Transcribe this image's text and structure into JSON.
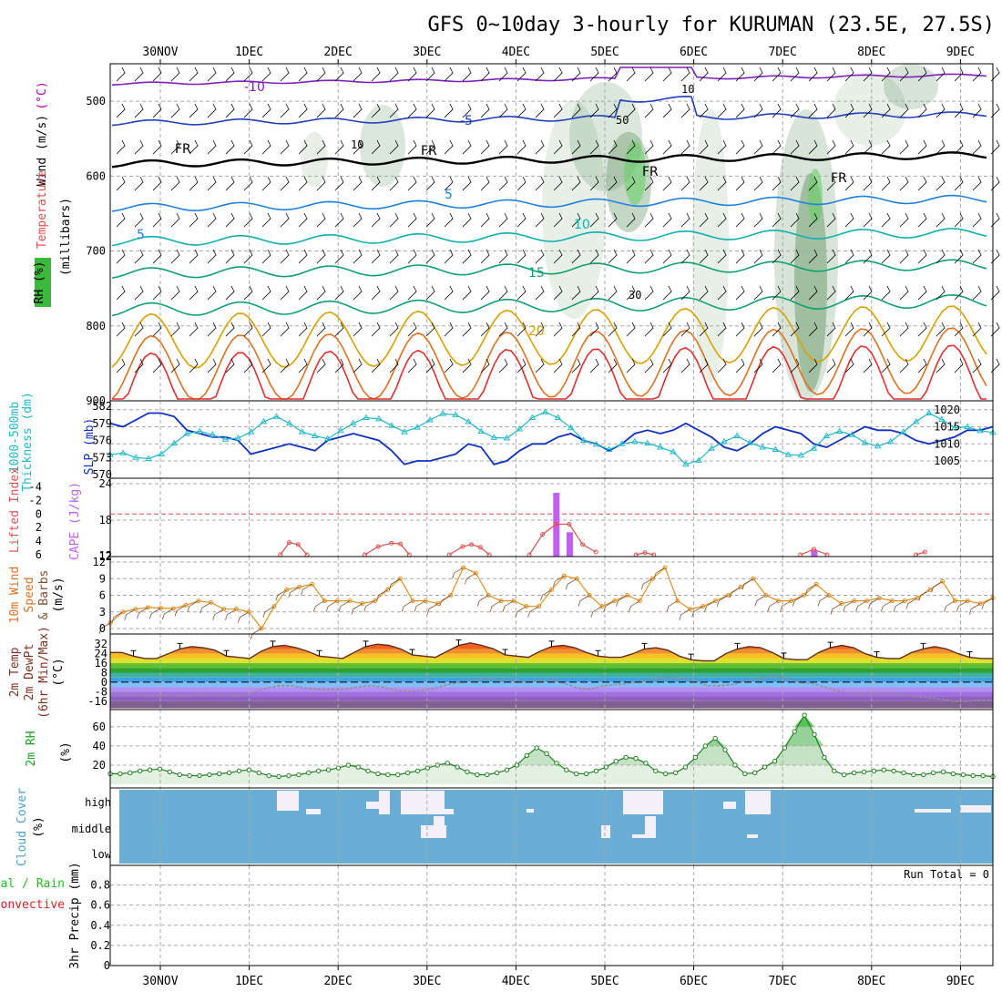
{
  "title": "GFS 0~10day 3-hourly for KURUMAN (23.5E, 27.5S)",
  "dates": [
    "30NOV",
    "1DEC",
    "2DEC",
    "3DEC",
    "4DEC",
    "5DEC",
    "6DEC",
    "7DEC",
    "8DEC",
    "9DEC"
  ],
  "chart_data": [
    {
      "id": "upper",
      "type": "contour",
      "ylabel_parts": [
        {
          "text": "Wind (m/s)",
          "color": "#000000"
        },
        {
          "text": "Temperature",
          "color": "#e05050"
        },
        {
          "text": "(°C)",
          "color": "#b000b0"
        }
      ],
      "ylabel2": "(millibars)",
      "rh_label": "RH (%)",
      "y_ticks": [
        500,
        600,
        700,
        800,
        900
      ],
      "ylim": [
        450,
        900
      ],
      "isotherm_labels": [
        {
          "text": "-10",
          "color": "#8020c0",
          "value": -10
        },
        {
          "text": "-5",
          "color": "#2040c0",
          "value": -5
        },
        {
          "text": "5",
          "color": "#2080e0",
          "value": 5
        },
        {
          "text": "5",
          "color": "#2080e0",
          "value": 5
        },
        {
          "text": "10",
          "color": "#10b0b0",
          "value": 10
        },
        {
          "text": "15",
          "color": "#10a070",
          "value": 15
        },
        {
          "text": "20",
          "color": "#d8a000",
          "value": 20
        },
        {
          "text": "FR",
          "color": "#000000",
          "value": 0
        },
        {
          "text": "FR",
          "color": "#000000",
          "value": 0
        },
        {
          "text": "FR",
          "color": "#000000",
          "value": 0
        },
        {
          "text": "FR",
          "color": "#000000",
          "value": 0
        }
      ],
      "rh_contour_labels": [
        "10",
        "50",
        "30",
        "10"
      ]
    },
    {
      "id": "slp",
      "type": "line",
      "ylabel_left": "Thickness (dm)",
      "ylabel_left2": "1000-500mb",
      "ylabel_right": "SLP (mb)",
      "y_ticks_thickness": [
        570,
        573,
        576,
        579,
        582
      ],
      "y_ticks_slp": [
        1005,
        1010,
        1015,
        1020
      ],
      "series": [
        {
          "name": "SLP",
          "color": "#1030c0",
          "values": [
            1016,
            1015,
            1017,
            1019,
            1019,
            1018,
            1014,
            1013,
            1012,
            1012,
            1011,
            1007,
            1008,
            1009,
            1010,
            1009,
            1008,
            1011,
            1012,
            1013,
            1012,
            1011,
            1008,
            1004,
            1005,
            1005,
            1006,
            1007,
            1010,
            1009,
            1004,
            1005,
            1008,
            1010,
            1010,
            1012,
            1013,
            1011,
            1010,
            1008,
            1010,
            1013,
            1014,
            1013,
            1014,
            1016,
            1014,
            1012,
            1009,
            1008,
            1010,
            1013,
            1015,
            1014,
            1013,
            1010,
            1009,
            1011,
            1013,
            1015,
            1014,
            1014,
            1013,
            1011,
            1010,
            1011,
            1012,
            1014,
            1014,
            1015
          ]
        },
        {
          "name": "Thickness",
          "color": "#20b8c8",
          "values": [
            573.5,
            573.8,
            573.0,
            572.8,
            573.6,
            575.5,
            577.2,
            577.6,
            577.0,
            576.2,
            576.4,
            577.5,
            579.3,
            580.2,
            579.0,
            577.5,
            576.8,
            576.3,
            577.7,
            579.0,
            580.0,
            579.8,
            578.6,
            577.5,
            578.3,
            579.6,
            580.7,
            580.5,
            579.3,
            577.6,
            576.5,
            576.4,
            578.0,
            580.0,
            581.0,
            580.0,
            578.2,
            576.0,
            575.3,
            574.4,
            575.4,
            575.8,
            575.5,
            574.8,
            574.0,
            571.8,
            572.5,
            574.6,
            575.8,
            576.8,
            575.6,
            574.8,
            574.4,
            573.5,
            573.4,
            574.6,
            576.8,
            577.6,
            577.0,
            575.6,
            575.0,
            575.8,
            577.5,
            579.3,
            580.8,
            579.7,
            578.2,
            578.4,
            577.7,
            577.4
          ]
        }
      ]
    },
    {
      "id": "cape",
      "type": "bar+line",
      "ylabel_left": "Lifted Index",
      "ylabel_right": "CAPE (J/kg)",
      "li_ticks": [
        "-4",
        "-2",
        "0",
        "2",
        "4",
        "6"
      ],
      "cape_ticks": [
        12,
        18,
        24
      ],
      "cape_bars": [
        {
          "x": 4.45,
          "value": 22.5
        },
        {
          "x": 4.6,
          "value": 16
        },
        {
          "x": 7.35,
          "value": 13
        }
      ],
      "li_series": {
        "name": "Lifted Index",
        "color": "#e05050",
        "segments": [
          {
            "x": [
              1.35,
              1.45,
              1.55,
              1.65
            ],
            "y": [
              6,
              4.2,
              4.5,
              6
            ]
          },
          {
            "x": [
              2.3,
              2.45,
              2.6,
              2.7,
              2.8
            ],
            "y": [
              6,
              4.8,
              4.3,
              4.4,
              6
            ]
          },
          {
            "x": [
              3.25,
              3.4,
              3.5,
              3.6,
              3.7
            ],
            "y": [
              6,
              4.8,
              4.5,
              4.9,
              6
            ]
          },
          {
            "x": [
              4.15,
              4.3,
              4.45,
              4.6,
              4.75,
              4.9
            ],
            "y": [
              6,
              3.0,
              1.5,
              1.5,
              4.5,
              5.6
            ]
          },
          {
            "x": [
              5.35,
              5.45,
              5.55
            ],
            "y": [
              6,
              5.7,
              6
            ]
          },
          {
            "x": [
              7.2,
              7.35,
              7.5
            ],
            "y": [
              6,
              5.2,
              6
            ]
          },
          {
            "x": [
              8.5,
              8.6
            ],
            "y": [
              6,
              5.6
            ]
          }
        ]
      }
    },
    {
      "id": "wind10m",
      "type": "line",
      "ylabel": "10m Wind",
      "ylabel2": "Speed",
      "ylabel3": "& Barbs",
      "ylabel4": "(m/s)",
      "y_ticks": [
        0,
        3,
        6,
        9,
        12
      ],
      "series": [
        {
          "name": "Speed",
          "color": "#e09020",
          "values": [
            1,
            3,
            3.5,
            3.8,
            3.7,
            3.6,
            4.2,
            5,
            4.7,
            3.5,
            3.5,
            3,
            0,
            4,
            7,
            7.5,
            8,
            5,
            5,
            5,
            4.5,
            5,
            7,
            9,
            5,
            5,
            4.5,
            6,
            11,
            10,
            6,
            5,
            5,
            4,
            4,
            7,
            9.5,
            9,
            6,
            4,
            5,
            6,
            5,
            9,
            11,
            5,
            3.5,
            4,
            5,
            6,
            7.5,
            9,
            6,
            5,
            5,
            6,
            8,
            6,
            4.5,
            5,
            5,
            5.5,
            5,
            5,
            5.5,
            7,
            8.5,
            5,
            5,
            4.5,
            5.5
          ]
        }
      ]
    },
    {
      "id": "temp2m",
      "type": "area",
      "ylabel": "2m Temp",
      "ylabel2": "2m DewPt",
      "ylabel3": "(6hr Min/Max)",
      "ylabel4": "(°C)",
      "y_ticks": [
        32,
        24,
        16,
        8,
        0,
        -8,
        -16
      ],
      "series": [
        {
          "name": "2m Temp",
          "color": "#603020",
          "values": [
            25,
            25,
            22,
            20,
            20,
            24,
            28,
            30,
            29,
            27,
            22,
            21,
            20,
            26,
            30,
            31,
            29,
            26,
            22,
            21,
            20,
            25,
            30,
            32,
            31,
            28,
            23,
            22,
            21,
            26,
            31,
            33,
            31,
            28,
            23,
            22,
            21,
            26,
            30,
            31,
            29,
            25,
            22,
            21,
            21,
            24,
            28,
            29,
            27,
            22,
            19,
            18,
            18,
            24,
            28,
            30,
            29,
            25,
            20,
            19,
            19,
            25,
            29,
            31,
            29,
            24,
            21,
            20,
            20,
            25,
            28,
            30,
            28,
            24,
            21,
            20,
            20
          ]
        },
        {
          "name": "2m DewPt",
          "color": "#909090",
          "values": [
            -9,
            -10,
            -10,
            -11,
            -11,
            -11,
            -11,
            -10,
            -10,
            -11,
            -11,
            -9,
            -5,
            -3,
            -3,
            -5,
            -6,
            -6,
            -6,
            -4,
            -3,
            -4,
            -7,
            -8,
            -7,
            -5,
            -2,
            0,
            2,
            3,
            2,
            1,
            0,
            1,
            2,
            -1,
            -5,
            -6,
            -3,
            -2,
            -1,
            1,
            3,
            4,
            3,
            1,
            -3,
            -3,
            -2,
            1,
            3,
            5,
            3,
            0,
            -1,
            -4,
            -7,
            -9,
            -10,
            -10,
            -9,
            -10,
            -12,
            -13,
            -14,
            -16,
            -16,
            -15,
            -15
          ]
        }
      ]
    },
    {
      "id": "rh2m",
      "type": "area",
      "ylabel": "2m RH",
      "ylabel2": "(%)",
      "y_ticks": [
        20,
        40,
        60
      ],
      "series": [
        {
          "name": "2m RH",
          "color": "#208020",
          "values": [
            11,
            11,
            12,
            14,
            15,
            16,
            13,
            10,
            9,
            9,
            10,
            11,
            12,
            14,
            15,
            12,
            9,
            8,
            9,
            10,
            12,
            14,
            15,
            17,
            20,
            18,
            14,
            11,
            10,
            10,
            12,
            14,
            17,
            20,
            22,
            18,
            13,
            10,
            10,
            12,
            15,
            20,
            30,
            38,
            32,
            22,
            15,
            11,
            11,
            14,
            18,
            24,
            28,
            27,
            22,
            14,
            11,
            12,
            18,
            28,
            40,
            48,
            36,
            20,
            11,
            12,
            18,
            24,
            38,
            55,
            72,
            52,
            28,
            14,
            10,
            12,
            13,
            14,
            15,
            14,
            12,
            10,
            10,
            12,
            13,
            11,
            10,
            9,
            9,
            8
          ]
        }
      ]
    },
    {
      "id": "cloud",
      "type": "heatmap",
      "ylabel": "Cloud Cover",
      "ylabel2": "(%)",
      "levels": [
        "high",
        "middle",
        "low"
      ],
      "run_total_label": "Run Total = 0"
    },
    {
      "id": "precip",
      "type": "bar",
      "ylabel_total": "Total / Rain",
      "ylabel_conv": "Convective",
      "ylabel": "3hr Precip (mm)",
      "y_ticks": [
        "0",
        "0.2",
        "0.4",
        "0.6",
        "0.8"
      ],
      "values": []
    }
  ]
}
